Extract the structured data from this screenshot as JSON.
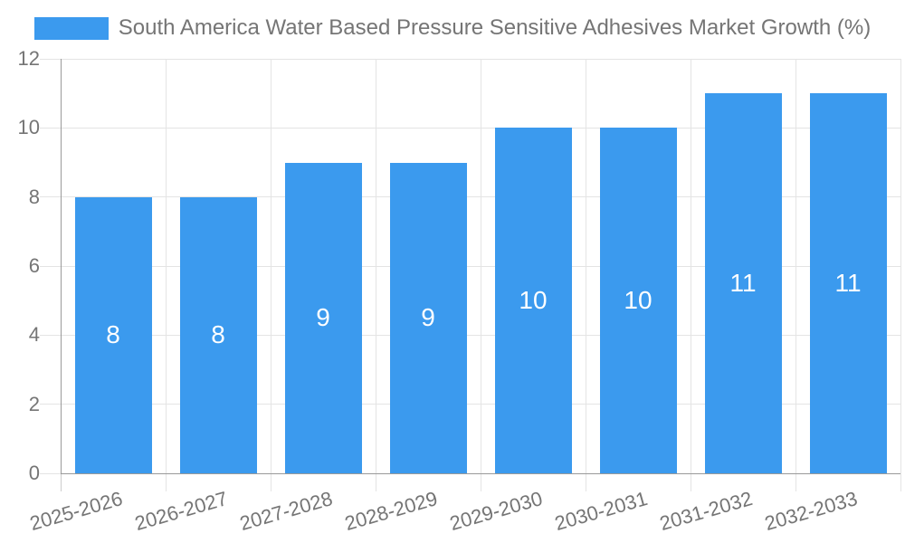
{
  "legend": {
    "position": "top"
  },
  "chart_data": {
    "type": "bar",
    "title": "South America Water Based Pressure Sensitive Adhesives Market Growth (%)",
    "categories": [
      "2025-2026",
      "2026-2027",
      "2027-2028",
      "2028-2029",
      "2029-2030",
      "2030-2031",
      "2031-2032",
      "2032-2033"
    ],
    "values": [
      8,
      8,
      9,
      9,
      10,
      10,
      11,
      11
    ],
    "bar_labels": [
      "8",
      "8",
      "9",
      "9",
      "10",
      "10",
      "11",
      "11"
    ],
    "xlabel": "",
    "ylabel": "",
    "ylim": [
      0,
      12
    ],
    "yticks": [
      0,
      2,
      4,
      6,
      8,
      10,
      12
    ],
    "grid": true,
    "legend_position": "top",
    "bar_color": "#3B9AEE",
    "bar_value_label_color": "#ffffff",
    "axis_text_color": "#757575",
    "grid_color": "#e4e4e4",
    "axis_line_color": "#9a9a9a",
    "tick_color": "#cccccc"
  }
}
